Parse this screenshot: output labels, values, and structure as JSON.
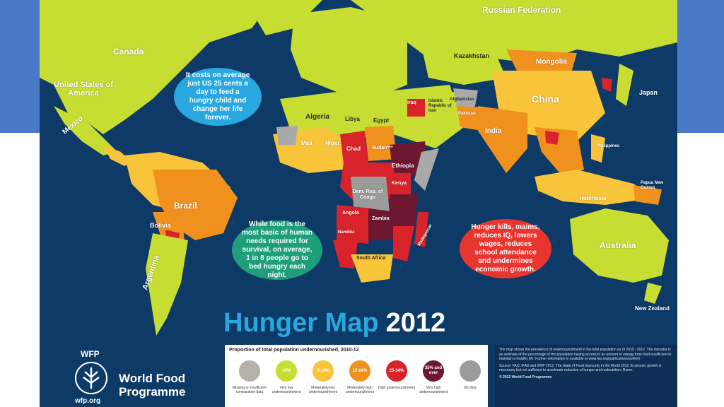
{
  "title": {
    "word1": "Hunger Map",
    "word2": "2012"
  },
  "colors": {
    "ocean": "#0d3a66",
    "very_low": "#c8dd32",
    "moderately_low": "#f7c43a",
    "moderately_high": "#f0911e",
    "high": "#d9232a",
    "very_high": "#6e1730",
    "missing": "#a9a9a9",
    "no_data": "#9b9b9b"
  },
  "labels": {
    "russia": "Russian Federation",
    "canada": "Canada",
    "usa": "United States of America",
    "mexico": "Mexico",
    "kazakhstan": "Kazakhstan",
    "mongolia": "Mongolia",
    "china": "China",
    "japan": "Japan",
    "india": "India",
    "algeria": "Algeria",
    "libya": "Libya",
    "egypt": "Egypt",
    "mali": "Mali",
    "niger": "Niger",
    "chad": "Chad",
    "sudan": "Sudan***",
    "ethiopia": "Ethiopia",
    "kenya": "Kenya",
    "drc": "Dem. Rep. of Congo",
    "angola": "Angola",
    "zambia": "Zambia",
    "namibia": "Namibia",
    "south_africa": "South Africa",
    "madagascar": "Madagascar",
    "brazil": "Brazil",
    "bolivia": "Bolivia",
    "argentina": "Argentina",
    "australia": "Australia",
    "new_zealand": "New Zealand",
    "indonesia": "Indonesia",
    "philippines": "Philippines",
    "papua": "Papua New Guinea",
    "iran": "Islamic Republic of Iran",
    "iraq": "Iraq",
    "pakistan": "Pakistan",
    "afghanistan": "Afghanistan"
  },
  "bubbles": {
    "blue": "It costs on average just US 25 cents a day to feed a hungry child and change her life forever.",
    "green": "While food is the most basic of human needs required for survival, on average, 1 in 8 people go to bed hungry each night.",
    "red": "Hunger kills, maims, reduces IQ, lowers wages, reduces school attendance and undermines economic growth."
  },
  "legend": {
    "title": "Proportion of total population undernourished, 2010-12",
    "items": [
      {
        "value": "",
        "label": "Missing or insufficient comparative data",
        "color": "#b5b0a8"
      },
      {
        "value": "<5%",
        "label": "Very low undernourishment",
        "color": "#c8dd32"
      },
      {
        "value": "5-14%",
        "label": "Moderately low undernourishment",
        "color": "#f7c43a"
      },
      {
        "value": "15-24%",
        "label": "Moderately high undernourishment",
        "color": "#f0911e"
      },
      {
        "value": "25-34%",
        "label": "High undernourishment",
        "color": "#d9232a"
      },
      {
        "value": "35% and over",
        "label": "Very high undernourishment",
        "color": "#6e1730"
      },
      {
        "value": "",
        "label": "No data",
        "color": "#9b9b9b"
      }
    ]
  },
  "notes": [
    "The map shows the prevalence of undernourishment in the total population as of 2010 - 2012. The indicator is an estimate of the percentage of the population having access to an amount of energy from food insufficient to maintain a healthy life. Further information is available at www.fao.org/publications/sofi/en/",
    "Source: FAO, IFAD and WFP 2012. The State of Food Insecurity in the World 2012: Economic growth is necessary but not sufficient to accelerate reduction of hunger and malnutrition. Rome.",
    "© 2012 World Food Programme"
  ],
  "brand": {
    "short": "WFP",
    "line1": "World Food",
    "line2": "Programme",
    "url": "wfp.org"
  }
}
